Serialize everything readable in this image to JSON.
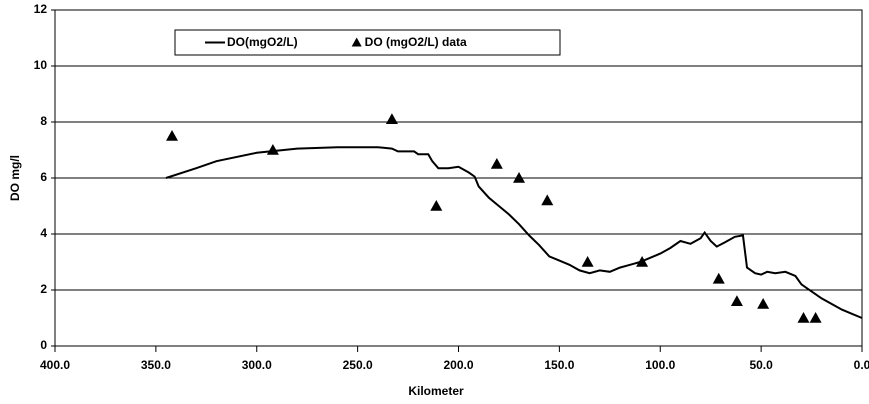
{
  "chart_data": {
    "type": "line",
    "x_label": "Kilometer",
    "y_label": "DO mg/l",
    "xlim": [
      400,
      0
    ],
    "ylim": [
      0,
      12
    ],
    "xticks": [
      {
        "value": 400,
        "label": "400.0"
      },
      {
        "value": 350,
        "label": "350.0"
      },
      {
        "value": 300,
        "label": "300.0"
      },
      {
        "value": 250,
        "label": "250.0"
      },
      {
        "value": 200,
        "label": "200.0"
      },
      {
        "value": 150,
        "label": "150.0"
      },
      {
        "value": 100,
        "label": "100.0"
      },
      {
        "value": 50,
        "label": "50.0"
      },
      {
        "value": 0,
        "label": "0.0"
      }
    ],
    "yticks": [
      0,
      2,
      4,
      6,
      8,
      10,
      12
    ],
    "grid": true,
    "legend": "top-left",
    "series": [
      {
        "name": "DO(mgO2/L)",
        "type": "line",
        "color": "#000000",
        "x": [
          345,
          330,
          320,
          300,
          280,
          260,
          240,
          233,
          230,
          222,
          220,
          215,
          213,
          210,
          205,
          200,
          195,
          192,
          190,
          185,
          180,
          175,
          170,
          165,
          160,
          155,
          150,
          145,
          140,
          135,
          130,
          125,
          120,
          115,
          110,
          105,
          100,
          95,
          90,
          85,
          80,
          78,
          75,
          72,
          68,
          63,
          59,
          57,
          53,
          50,
          47,
          43,
          38,
          33,
          30,
          25,
          20,
          15,
          10,
          5,
          0
        ],
        "values": [
          6.0,
          6.35,
          6.6,
          6.9,
          7.05,
          7.1,
          7.1,
          7.05,
          6.95,
          6.95,
          6.85,
          6.85,
          6.6,
          6.35,
          6.35,
          6.4,
          6.2,
          6.05,
          5.7,
          5.3,
          5.0,
          4.7,
          4.35,
          3.95,
          3.6,
          3.2,
          3.05,
          2.9,
          2.7,
          2.6,
          2.7,
          2.65,
          2.8,
          2.9,
          3.0,
          3.15,
          3.3,
          3.5,
          3.75,
          3.65,
          3.85,
          4.05,
          3.75,
          3.55,
          3.7,
          3.9,
          3.95,
          2.8,
          2.6,
          2.55,
          2.65,
          2.6,
          2.65,
          2.5,
          2.2,
          1.95,
          1.7,
          1.5,
          1.3,
          1.15,
          1.0
        ]
      },
      {
        "name": "DO (mgO2/L) data",
        "type": "scatter",
        "color": "#000000",
        "x": [
          342,
          292,
          233,
          211,
          181,
          170,
          156,
          136,
          109,
          71,
          62,
          49,
          29,
          23
        ],
        "values": [
          7.5,
          7.0,
          8.1,
          5.0,
          6.5,
          6.0,
          5.2,
          3.0,
          3.0,
          2.4,
          1.6,
          1.5,
          1.0,
          1.0
        ]
      }
    ]
  }
}
